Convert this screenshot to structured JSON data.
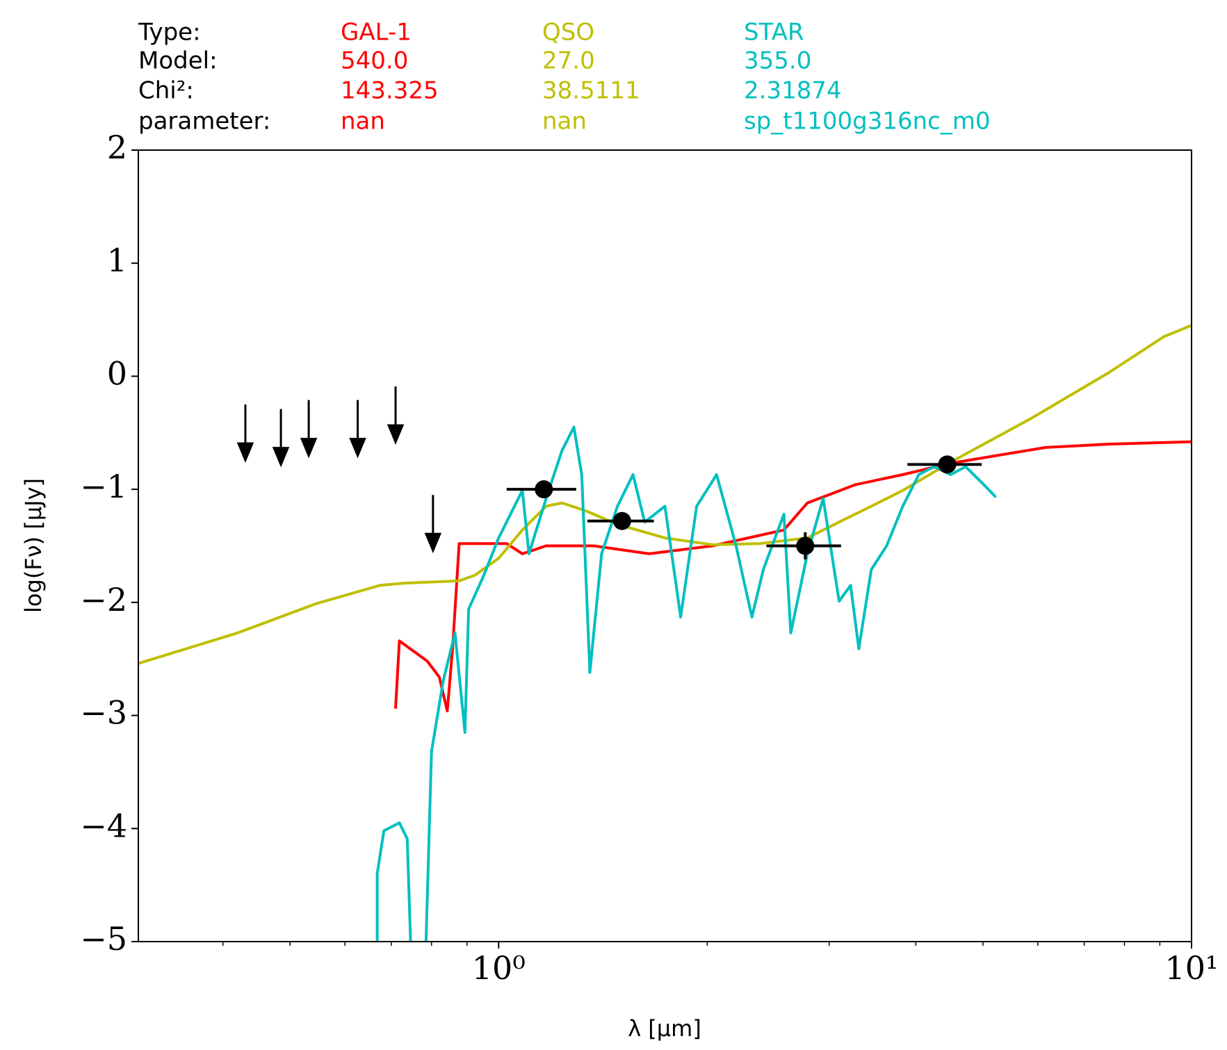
{
  "chart_data": {
    "type": "line",
    "xlabel": "λ [μm]",
    "ylabel": "log(Fν) [μJy]",
    "xlog": true,
    "xlim": [
      0.302,
      10
    ],
    "ylim": [
      -5,
      2
    ],
    "xticks": [
      {
        "value": 1,
        "label": "10⁰"
      },
      {
        "value": 10,
        "label": "10¹"
      }
    ],
    "xminorticks": [
      0.4,
      0.5,
      0.6,
      0.7,
      0.8,
      0.9,
      2,
      3,
      4,
      5,
      6,
      7,
      8,
      9
    ],
    "yticks": [
      {
        "value": -5,
        "label": "−5"
      },
      {
        "value": -4,
        "label": "−4"
      },
      {
        "value": -3,
        "label": "−3"
      },
      {
        "value": -2,
        "label": "−2"
      },
      {
        "value": -1,
        "label": "−1"
      },
      0,
      1,
      2
    ],
    "info_labels": [
      "Type:",
      "Model:",
      "Chi²:",
      "parameter:"
    ],
    "series": [
      {
        "name": "GAL-1",
        "color": "#ff0000",
        "model": "540.0",
        "chi2": 143.325,
        "parameter": "nan",
        "x": [
          0.71,
          0.719,
          0.789,
          0.821,
          0.843,
          0.858,
          0.877,
          0.924,
          1.027,
          1.082,
          1.171,
          1.372,
          1.649,
          2.035,
          2.58,
          2.79,
          3.27,
          3.83,
          4.49,
          5.25,
          6.16,
          7.59,
          10
        ],
        "values": [
          -2.94,
          -2.34,
          -2.52,
          -2.66,
          -2.96,
          -2.41,
          -1.48,
          -1.48,
          -1.48,
          -1.57,
          -1.5,
          -1.5,
          -1.57,
          -1.5,
          -1.36,
          -1.12,
          -0.96,
          -0.87,
          -0.77,
          -0.7,
          -0.63,
          -0.6,
          -0.58
        ]
      },
      {
        "name": "QSO",
        "color": "#bfbf00",
        "model": "27.0",
        "chi2": 38.5111,
        "parameter": "nan",
        "x": [
          0.302,
          0.42,
          0.546,
          0.674,
          0.729,
          0.877,
          0.924,
          1.0,
          1.082,
          1.171,
          1.234,
          1.336,
          1.484,
          1.738,
          2.035,
          2.383,
          2.79,
          3.1,
          3.45,
          3.83,
          4.49,
          5.84,
          7.59,
          9.12,
          10
        ],
        "values": [
          -2.54,
          -2.27,
          -2.01,
          -1.85,
          -1.83,
          -1.81,
          -1.76,
          -1.61,
          -1.36,
          -1.15,
          -1.12,
          -1.19,
          -1.31,
          -1.43,
          -1.49,
          -1.48,
          -1.43,
          -1.29,
          -1.15,
          -1.01,
          -0.76,
          -0.38,
          0.03,
          0.35,
          0.45
        ]
      },
      {
        "name": "STAR",
        "color": "#00bfbf",
        "model": "355.0",
        "chi2": 2.31874,
        "parameter": "sp_t1100g316nc_m0",
        "x": [
          0.668,
          0.668,
          0.683,
          0.719,
          0.738,
          0.749,
          0.783,
          0.8,
          0.832,
          0.865,
          0.894,
          0.905,
          0.949,
          1.0,
          1.082,
          1.106,
          1.171,
          1.234,
          1.284,
          1.318,
          1.354,
          1.408,
          1.484,
          1.563,
          1.625,
          1.738,
          1.831,
          1.931,
          2.063,
          2.201,
          2.32,
          2.41,
          2.58,
          2.64,
          2.79,
          2.94,
          3.1,
          3.22,
          3.31,
          3.45,
          3.63,
          3.83,
          4.04,
          4.25,
          4.49,
          4.72,
          4.98,
          5.22
        ],
        "values": [
          -5.3,
          -4.4,
          -4.02,
          -3.95,
          -4.09,
          -5.3,
          -5.3,
          -3.32,
          -2.69,
          -2.27,
          -3.15,
          -2.06,
          -1.78,
          -1.43,
          -1.01,
          -1.57,
          -1.08,
          -0.66,
          -0.45,
          -0.87,
          -2.62,
          -1.57,
          -1.15,
          -0.87,
          -1.29,
          -1.15,
          -2.13,
          -1.15,
          -0.87,
          -1.5,
          -2.13,
          -1.71,
          -1.22,
          -2.27,
          -1.57,
          -1.08,
          -1.99,
          -1.85,
          -2.41,
          -1.71,
          -1.5,
          -1.15,
          -0.87,
          -0.8,
          -0.87,
          -0.8,
          -0.94,
          -1.07
        ]
      }
    ],
    "points": {
      "x": [
        1.162,
        1.507,
        2.77,
        4.44
      ],
      "y": [
        -1.0,
        -1.28,
        -1.5,
        -0.78
      ],
      "x_low": [
        1.027,
        1.343,
        2.435,
        3.89
      ],
      "x_high": [
        1.294,
        1.675,
        3.12,
        4.98
      ],
      "yerr": [
        null,
        null,
        0.12,
        null
      ]
    },
    "upper_limits": {
      "x": [
        0.431,
        0.485,
        0.532,
        0.626,
        0.71,
        0.804
      ],
      "y": [
        -0.25,
        -0.29,
        -0.21,
        -0.21,
        -0.09,
        -1.05
      ]
    }
  }
}
